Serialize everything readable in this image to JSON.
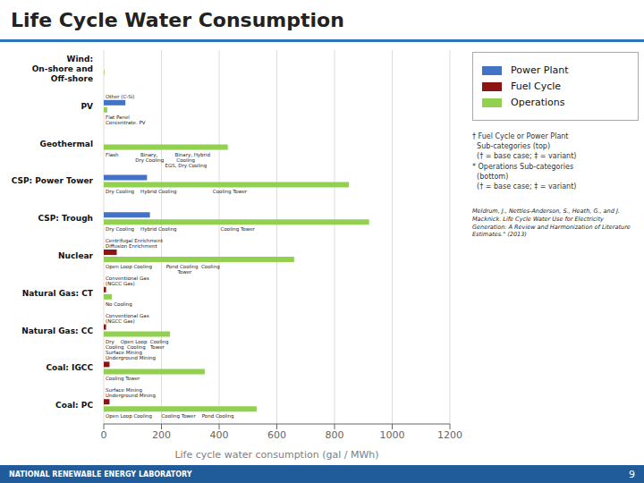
{
  "chart_data": {
    "type": "bar",
    "orientation": "horizontal",
    "title": "Life Cycle Water Consumption",
    "xlabel": "Life cycle water consumption (gal / MWh)",
    "xlim": [
      0,
      1200
    ],
    "xticks": [
      0,
      200,
      400,
      600,
      800,
      1000,
      1200
    ],
    "grid": true,
    "legend": "right",
    "categories": [
      "Wind:\nOn-shore and\nOff-shore",
      "PV",
      "Geothermal",
      "CSP: Power Tower",
      "CSP: Trough",
      "Nuclear",
      "Natural Gas: CT",
      "Natural Gas: CC",
      "Coal: IGCC",
      "Coal: PC"
    ],
    "series": [
      {
        "name": "Power Plant",
        "color": "#4472C4",
        "values": [
          0,
          75,
          0,
          150,
          160,
          0,
          0,
          0,
          0,
          0
        ]
      },
      {
        "name": "Fuel Cycle",
        "color": "#8B1515",
        "values": [
          0,
          0,
          0,
          0,
          0,
          45,
          8,
          8,
          20,
          20
        ]
      },
      {
        "name": "Operations",
        "color": "#92D050",
        "values": [
          2,
          12,
          430,
          850,
          920,
          660,
          28,
          230,
          350,
          530
        ]
      }
    ],
    "top_notes": [
      null,
      "Other (C-Si)",
      null,
      null,
      null,
      "Centrifugal Enrichment\nDiffusion Enrichment",
      "Conventional Gas\n(NGCC Gas)",
      "Conventional Gas\n(NGCC Gas)",
      "Surface Mining\nUnderground Mining",
      "Surface Mining\nUnderground Mining"
    ],
    "bottom_notes": [
      null,
      "Flat Panel\nConcentrate. PV",
      "Flash              Binary,           Binary, Hybrid\n                   Dry Cooling        Cooling\n                                      EGS, Dry Cooling",
      "Dry Cooling    Hybrid Cooling                       Cooling Tower",
      "Dry Cooling    Hybrid Cooling                            Cooling Tower",
      "Open Loop Cooling         Pond Cooling  Cooling\n                                              Tower",
      "No Cooling",
      "Dry    Open Loop  Cooling\nCooling  Cooling   Tower",
      "Cooling Tower",
      "Open Loop Cooling      Cooling Tower    Pond Cooling"
    ],
    "legend_note": "† Fuel Cycle or Power Plant\n  Sub-categories (top)\n  († = base case; ‡ = variant)\n* Operations Sub-categories\n  (bottom)\n  († = base case; ‡ = variant)",
    "footer": "Meldrum, J., Nettles-Anderson, S., Heath, G., and J.\nMacknick. Life Cycle Water Use for Electricity\nGeneration: A Review and Harmonization of Literature\nEstimates.\" (2013)",
    "nrel_text": "NATIONAL RENEWABLE ENERGY LABORATORY",
    "page_number": "9"
  }
}
